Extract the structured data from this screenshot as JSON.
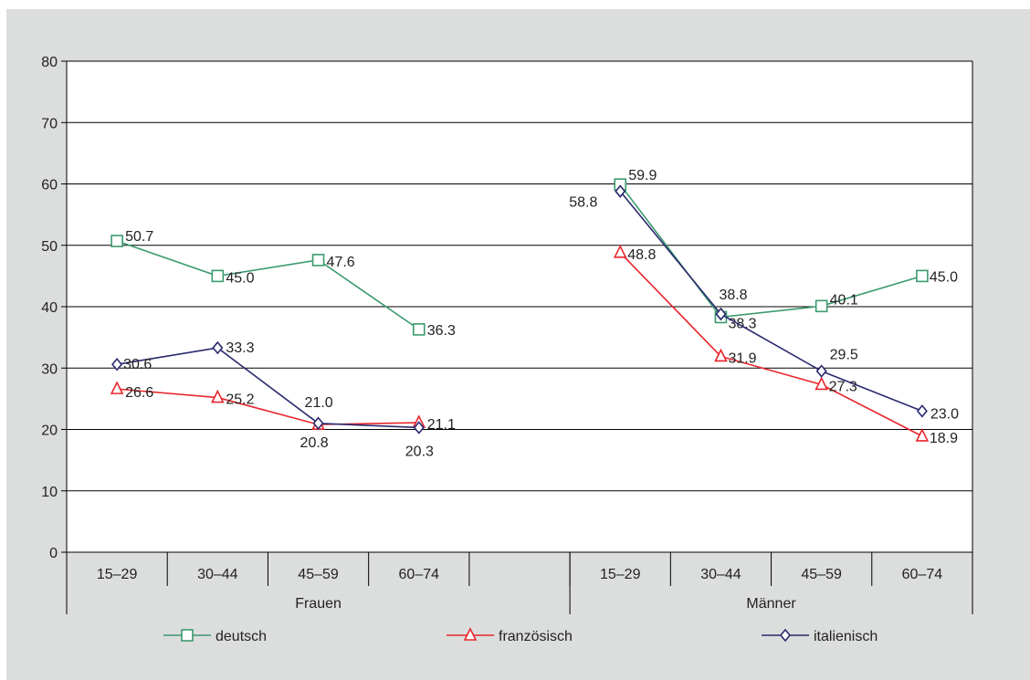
{
  "chart_data": {
    "type": "line",
    "title": "",
    "xlabel": "",
    "ylabel": "",
    "ylim": [
      0,
      80
    ],
    "yticks": [
      0,
      10,
      20,
      30,
      40,
      50,
      60,
      70,
      80
    ],
    "grid": true,
    "legend_position": "bottom",
    "groups": [
      {
        "label": "Frauen",
        "categories": [
          "15–29",
          "30–44",
          "45–59",
          "60–74",
          ""
        ]
      },
      {
        "label": "Männer",
        "categories": [
          "15–29",
          "30–44",
          "45–59",
          "60–74"
        ]
      }
    ],
    "series": [
      {
        "name": "deutsch",
        "color": "#3a9a6e",
        "marker": "square",
        "values": [
          50.7,
          45.0,
          47.6,
          36.3,
          null,
          59.9,
          38.3,
          40.1,
          45.0
        ],
        "labels": [
          "50.7",
          "45.0",
          "47.6",
          "36.3",
          "",
          "59.9",
          "38.3",
          "40.1",
          "45.0"
        ]
      },
      {
        "name": "französisch",
        "color": "#e8262d",
        "marker": "triangle",
        "values": [
          26.6,
          25.2,
          20.8,
          21.1,
          null,
          48.8,
          31.9,
          27.3,
          18.9
        ],
        "labels": [
          "26.6",
          "25.2",
          "20.8",
          "21.1",
          "",
          "48.8",
          "31.9",
          "27.3",
          "18.9"
        ]
      },
      {
        "name": "italienisch",
        "color": "#2b2a6e",
        "marker": "diamond",
        "values": [
          30.6,
          33.3,
          21.0,
          20.3,
          null,
          58.8,
          38.8,
          29.5,
          23.0
        ],
        "labels": [
          "30.6",
          "33.3",
          "21.0",
          "20.3",
          "",
          "58.8",
          "38.8",
          "29.5",
          "23.0"
        ]
      }
    ]
  }
}
